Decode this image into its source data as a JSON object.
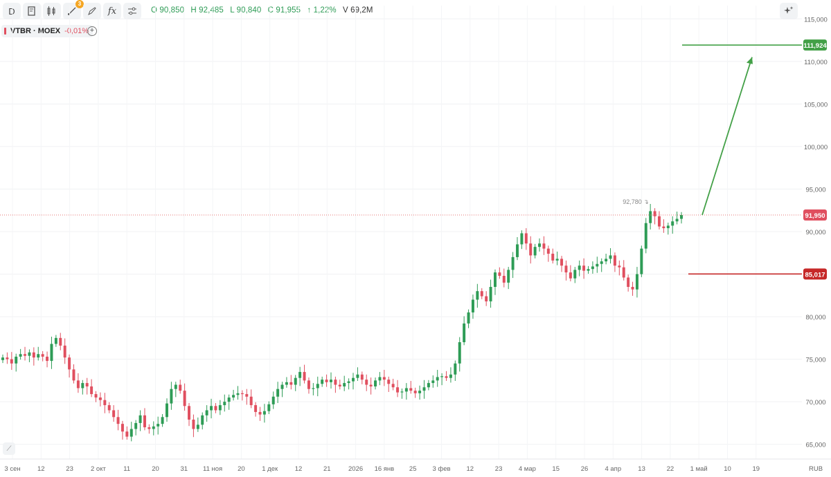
{
  "toolbar": {
    "interval": "D",
    "fx": "fx",
    "drawings_badge": "3"
  },
  "ohlc": {
    "o_label": "O",
    "o": "90,850",
    "h_label": "H",
    "h": "92,485",
    "l_label": "L",
    "l": "90,840",
    "c_label": "C",
    "c": "91,955",
    "change": "↑ 1,22%",
    "v_label": "V",
    "v": "69,2M"
  },
  "ticker": {
    "symbol": "VTBR · MOEX",
    "change": "-0,01%"
  },
  "colors": {
    "up": "#2e9c56",
    "down": "#e04f5f",
    "target": "#43a047",
    "stop": "#c62828",
    "price_line": "#e57373"
  },
  "chart_data": {
    "type": "candlestick",
    "currency": "RUB",
    "y_ticks": [
      "65,000",
      "70,000",
      "75,000",
      "80,000",
      "85,000",
      "90,000",
      "95,000",
      "100,000",
      "105,000",
      "110,000",
      "115,000"
    ],
    "ylim": [
      64,
      116
    ],
    "x_ticks": [
      "3 сен",
      "12",
      "23",
      "2 окт",
      "11",
      "20",
      "31",
      "11 ноя",
      "20",
      "1 дек",
      "12",
      "21",
      "2026",
      "16 янв",
      "25",
      "3 фев",
      "12",
      "23",
      "4 мар",
      "15",
      "26",
      "4 апр",
      "13",
      "22",
      "1 май",
      "10",
      "19"
    ],
    "current_price": 91.95,
    "current_price_label": "91,950",
    "high_marker_label": "92,780",
    "target": {
      "value": 111.924,
      "label": "111,924"
    },
    "stop": {
      "value": 85.017,
      "label": "85,017"
    },
    "close_series": [
      75.2,
      75.0,
      74.5,
      75.3,
      75.6,
      75.4,
      75.8,
      75.2,
      75.6,
      75.3,
      74.8,
      76.8,
      77.5,
      76.6,
      75.2,
      73.8,
      72.5,
      71.6,
      72.2,
      71.8,
      70.9,
      70.5,
      70.2,
      69.6,
      69.0,
      68.2,
      67.4,
      66.5,
      65.9,
      66.8,
      67.5,
      68.4,
      67.0,
      66.8,
      67.1,
      67.4,
      68.2,
      69.8,
      71.5,
      72.0,
      71.3,
      69.5,
      67.9,
      66.8,
      67.3,
      68.4,
      69.0,
      69.5,
      69.0,
      69.6,
      70.0,
      70.5,
      70.8,
      71.0,
      70.9,
      70.6,
      69.6,
      68.8,
      68.5,
      68.9,
      69.7,
      70.6,
      71.5,
      72.0,
      72.3,
      72.0,
      72.8,
      73.5,
      72.5,
      71.5,
      71.6,
      72.1,
      72.6,
      72.3,
      72.6,
      72.0,
      71.8,
      72.2,
      72.4,
      72.8,
      73.2,
      72.6,
      72.0,
      71.8,
      72.5,
      72.9,
      72.6,
      72.1,
      71.7,
      71.1,
      71.2,
      71.6,
      71.3,
      71.0,
      71.3,
      71.7,
      72.2,
      72.5,
      72.9,
      73.0,
      72.8,
      73.2,
      74.5,
      77.0,
      79.2,
      80.5,
      82.0,
      83.0,
      82.4,
      81.8,
      83.5,
      85.2,
      84.8,
      84.0,
      85.5,
      87.0,
      88.5,
      89.8,
      88.6,
      87.2,
      88.2,
      88.6,
      88.0,
      87.4,
      86.6,
      86.8,
      86.0,
      85.2,
      84.5,
      85.5,
      86.0,
      85.4,
      85.6,
      85.9,
      86.2,
      86.5,
      86.8,
      87.2,
      86.0,
      85.8,
      84.6,
      83.5,
      83.2,
      85.0,
      88.0,
      91.0,
      92.4,
      91.8,
      90.6,
      90.4,
      90.7,
      91.2,
      91.5,
      91.95
    ]
  }
}
